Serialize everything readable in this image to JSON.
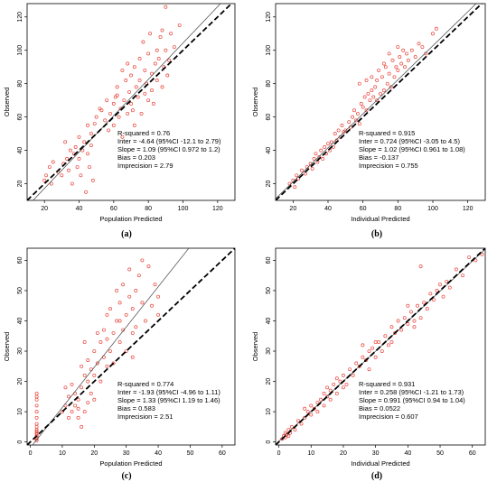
{
  "colors": {
    "points": "#e8453c",
    "identity": "#000000",
    "fit": "#444444"
  },
  "chart_data": [
    {
      "type": "scatter",
      "panel_label": "(a)",
      "xlabel": "Population Predicted",
      "ylabel": "Observed",
      "xlim": [
        10,
        130
      ],
      "ylim": [
        10,
        128
      ],
      "xticks": [
        20,
        40,
        60,
        80,
        100,
        120
      ],
      "yticks": [
        20,
        40,
        60,
        80,
        100,
        120
      ],
      "fit": {
        "intercept": -4.64,
        "slope": 1.09
      },
      "stats": [
        "R-squared = 0.76",
        "Inter = -4.64 (95%CI -12.1 to 2.79)",
        "Slope = 1.09 (95%CI 0.972 to 1.2)",
        "Bias = 0.203",
        "Imprecision  = 2.79"
      ],
      "points": [
        [
          20,
          22
        ],
        [
          21,
          25
        ],
        [
          23,
          30
        ],
        [
          24,
          20
        ],
        [
          25,
          33
        ],
        [
          28,
          27
        ],
        [
          30,
          25
        ],
        [
          31,
          32
        ],
        [
          32,
          45
        ],
        [
          33,
          35
        ],
        [
          34,
          28
        ],
        [
          35,
          40
        ],
        [
          36,
          20
        ],
        [
          37,
          38
        ],
        [
          38,
          42
        ],
        [
          39,
          30
        ],
        [
          40,
          48
        ],
        [
          40,
          35
        ],
        [
          41,
          25
        ],
        [
          42,
          40
        ],
        [
          43,
          45
        ],
        [
          44,
          15
        ],
        [
          45,
          55
        ],
        [
          46,
          30
        ],
        [
          47,
          43
        ],
        [
          48,
          22
        ],
        [
          49,
          56
        ],
        [
          50,
          60
        ],
        [
          52,
          65
        ],
        [
          55,
          58
        ],
        [
          57,
          52
        ],
        [
          58,
          62
        ],
        [
          60,
          68
        ],
        [
          60,
          55
        ],
        [
          61,
          72
        ],
        [
          62,
          78
        ],
        [
          63,
          60
        ],
        [
          64,
          65
        ],
        [
          65,
          88
        ],
        [
          65,
          48
        ],
        [
          66,
          70
        ],
        [
          67,
          82
        ],
        [
          68,
          92
        ],
        [
          68,
          62
        ],
        [
          69,
          75
        ],
        [
          70,
          85
        ],
        [
          70,
          68
        ],
        [
          71,
          64
        ],
        [
          72,
          90
        ],
        [
          72,
          55
        ],
        [
          73,
          78
        ],
        [
          74,
          72
        ],
        [
          75,
          82
        ],
        [
          75,
          95
        ],
        [
          76,
          62
        ],
        [
          77,
          105
        ],
        [
          78,
          88
        ],
        [
          78,
          74
        ],
        [
          79,
          80
        ],
        [
          80,
          70
        ],
        [
          80,
          98
        ],
        [
          81,
          110
        ],
        [
          82,
          86
        ],
        [
          82,
          76
        ],
        [
          83,
          68
        ],
        [
          84,
          92
        ],
        [
          85,
          100
        ],
        [
          85,
          82
        ],
        [
          86,
          95
        ],
        [
          87,
          108
        ],
        [
          88,
          78
        ],
        [
          88,
          112
        ],
        [
          89,
          90
        ],
        [
          90,
          100
        ],
        [
          90,
          126
        ],
        [
          91,
          85
        ],
        [
          92,
          94
        ],
        [
          93,
          110
        ],
        [
          95,
          102
        ],
        [
          98,
          115
        ],
        [
          56,
          70
        ],
        [
          47,
          50
        ],
        [
          45,
          38
        ],
        [
          53,
          64
        ],
        [
          62,
          73
        ]
      ]
    },
    {
      "type": "scatter",
      "panel_label": "(b)",
      "xlabel": "Individual Predicted",
      "ylabel": "Observed",
      "xlim": [
        10,
        130
      ],
      "ylim": [
        10,
        128
      ],
      "xticks": [
        20,
        40,
        60,
        80,
        100,
        120
      ],
      "yticks": [
        20,
        40,
        60,
        80,
        100,
        120
      ],
      "fit": {
        "intercept": 0.724,
        "slope": 1.02
      },
      "stats": [
        "R-squared = 0.915",
        "Inter = 0.724 (95%CI -3.05 to 4.5)",
        "Slope = 1.02 (95%CI 0.961 to 1.08)",
        "Bias = -0.137",
        "Imprecision  = 0.755"
      ],
      "points": [
        [
          18,
          20
        ],
        [
          20,
          22
        ],
        [
          21,
          18
        ],
        [
          22,
          25
        ],
        [
          23,
          23
        ],
        [
          25,
          28
        ],
        [
          27,
          26
        ],
        [
          28,
          30
        ],
        [
          30,
          32
        ],
        [
          31,
          29
        ],
        [
          32,
          35
        ],
        [
          33,
          38
        ],
        [
          34,
          33
        ],
        [
          35,
          36
        ],
        [
          36,
          40
        ],
        [
          37,
          35
        ],
        [
          38,
          42
        ],
        [
          39,
          38
        ],
        [
          40,
          44
        ],
        [
          41,
          40
        ],
        [
          42,
          45
        ],
        [
          43,
          42
        ],
        [
          44,
          50
        ],
        [
          45,
          46
        ],
        [
          46,
          52
        ],
        [
          47,
          48
        ],
        [
          48,
          55
        ],
        [
          49,
          51
        ],
        [
          50,
          52
        ],
        [
          52,
          57
        ],
        [
          53,
          54
        ],
        [
          54,
          60
        ],
        [
          55,
          64
        ],
        [
          56,
          58
        ],
        [
          57,
          62
        ],
        [
          58,
          80
        ],
        [
          59,
          68
        ],
        [
          60,
          66
        ],
        [
          61,
          72
        ],
        [
          62,
          64
        ],
        [
          63,
          74
        ],
        [
          64,
          70
        ],
        [
          65,
          76
        ],
        [
          66,
          72
        ],
        [
          67,
          78
        ],
        [
          68,
          82
        ],
        [
          68,
          70
        ],
        [
          69,
          88
        ],
        [
          70,
          74
        ],
        [
          71,
          84
        ],
        [
          72,
          76
        ],
        [
          73,
          90
        ],
        [
          74,
          80
        ],
        [
          75,
          86
        ],
        [
          76,
          78
        ],
        [
          77,
          94
        ],
        [
          78,
          84
        ],
        [
          79,
          90
        ],
        [
          80,
          88
        ],
        [
          81,
          96
        ],
        [
          82,
          92
        ],
        [
          83,
          100
        ],
        [
          84,
          90
        ],
        [
          85,
          98
        ],
        [
          86,
          94
        ],
        [
          88,
          100
        ],
        [
          90,
          96
        ],
        [
          92,
          104
        ],
        [
          94,
          102
        ],
        [
          96,
          98
        ],
        [
          100,
          110
        ],
        [
          102,
          113
        ],
        [
          72,
          92
        ],
        [
          65,
          84
        ],
        [
          75,
          98
        ],
        [
          80,
          102
        ],
        [
          58,
          56
        ],
        [
          62,
          82
        ]
      ]
    },
    {
      "type": "scatter",
      "panel_label": "(c)",
      "xlabel": "Population Predicted",
      "ylabel": "Observed",
      "xlim": [
        -1,
        64
      ],
      "ylim": [
        -1,
        64
      ],
      "xticks": [
        0,
        10,
        20,
        30,
        40,
        50,
        60
      ],
      "yticks": [
        0,
        10,
        20,
        30,
        40,
        50,
        60
      ],
      "fit": {
        "intercept": -1.93,
        "slope": 1.33
      },
      "stats": [
        "R-squared = 0.774",
        "Inter = -1.93 (95%CI -4.96 to 1.11)",
        "Slope = 1.33 (95%CI 1.19 to 1.46)",
        "Bias = 0.583",
        "Imprecision  = 2.51"
      ],
      "points": [
        [
          2,
          1
        ],
        [
          2,
          2
        ],
        [
          2,
          3
        ],
        [
          2,
          4
        ],
        [
          2,
          5
        ],
        [
          2,
          1.5
        ],
        [
          2,
          2.5
        ],
        [
          2,
          3.5
        ],
        [
          2,
          6
        ],
        [
          2,
          8
        ],
        [
          2,
          10
        ],
        [
          2,
          12
        ],
        [
          2,
          14
        ],
        [
          2,
          15
        ],
        [
          2,
          16
        ],
        [
          2,
          0.5
        ],
        [
          10,
          10
        ],
        [
          11,
          12
        ],
        [
          11,
          18
        ],
        [
          12,
          8
        ],
        [
          12,
          15
        ],
        [
          13,
          10
        ],
        [
          13,
          19
        ],
        [
          14,
          12
        ],
        [
          14,
          16
        ],
        [
          15,
          14
        ],
        [
          15,
          8
        ],
        [
          15,
          11
        ],
        [
          16,
          18
        ],
        [
          16,
          5
        ],
        [
          16,
          25
        ],
        [
          17,
          10
        ],
        [
          17,
          22
        ],
        [
          17,
          33
        ],
        [
          18,
          20
        ],
        [
          18,
          13
        ],
        [
          18,
          27
        ],
        [
          19,
          24
        ],
        [
          20,
          22
        ],
        [
          20,
          30
        ],
        [
          21,
          26
        ],
        [
          21,
          36
        ],
        [
          22,
          20
        ],
        [
          22,
          33
        ],
        [
          23,
          28
        ],
        [
          23,
          37
        ],
        [
          24,
          25
        ],
        [
          24,
          42
        ],
        [
          25,
          30
        ],
        [
          25,
          44
        ],
        [
          26,
          36
        ],
        [
          26,
          26
        ],
        [
          27,
          50
        ],
        [
          27,
          40
        ],
        [
          28,
          33
        ],
        [
          28,
          46
        ],
        [
          29,
          37
        ],
        [
          29,
          52
        ],
        [
          30,
          42
        ],
        [
          30,
          30
        ],
        [
          31,
          48
        ],
        [
          31,
          57
        ],
        [
          32,
          44
        ],
        [
          32,
          36
        ],
        [
          33,
          50
        ],
        [
          33,
          38
        ],
        [
          34,
          55
        ],
        [
          35,
          60
        ],
        [
          35,
          46
        ],
        [
          36,
          40
        ],
        [
          37,
          58
        ],
        [
          38,
          45
        ],
        [
          39,
          52
        ],
        [
          40,
          48
        ],
        [
          40,
          42
        ],
        [
          20,
          14
        ],
        [
          19,
          16
        ],
        [
          24,
          34
        ],
        [
          28,
          40
        ],
        [
          32,
          28
        ]
      ]
    },
    {
      "type": "scatter",
      "panel_label": "(d)",
      "xlabel": "Individual Predicted",
      "ylabel": "Observed",
      "xlim": [
        -1,
        64
      ],
      "ylim": [
        -1,
        64
      ],
      "xticks": [
        0,
        10,
        20,
        30,
        40,
        50,
        60
      ],
      "yticks": [
        0,
        10,
        20,
        30,
        40,
        50,
        60
      ],
      "fit": {
        "intercept": 0.258,
        "slope": 0.991
      },
      "stats": [
        "R-squared = 0.931",
        "Inter = 0.258 (95%CI -1.21 to 1.73)",
        "Slope = 0.991 (95%CI 0.94 to 1.04)",
        "Bias = 0.0522",
        "Imprecision  = 0.607"
      ],
      "points": [
        [
          1,
          1
        ],
        [
          1.5,
          2
        ],
        [
          2,
          1.5
        ],
        [
          2,
          3
        ],
        [
          2.5,
          2.5
        ],
        [
          3,
          2
        ],
        [
          3,
          4
        ],
        [
          3.5,
          3
        ],
        [
          4,
          5
        ],
        [
          5,
          4
        ],
        [
          6,
          7
        ],
        [
          7,
          6
        ],
        [
          8,
          8
        ],
        [
          9,
          10
        ],
        [
          10,
          9
        ],
        [
          10,
          12
        ],
        [
          11,
          11
        ],
        [
          12,
          13
        ],
        [
          12,
          10
        ],
        [
          13,
          14
        ],
        [
          14,
          12
        ],
        [
          14,
          16
        ],
        [
          15,
          15
        ],
        [
          16,
          17
        ],
        [
          16,
          14
        ],
        [
          17,
          19
        ],
        [
          18,
          16
        ],
        [
          18,
          21
        ],
        [
          19,
          20
        ],
        [
          20,
          22
        ],
        [
          21,
          19
        ],
        [
          22,
          24
        ],
        [
          23,
          22
        ],
        [
          24,
          26
        ],
        [
          25,
          25
        ],
        [
          26,
          28
        ],
        [
          27,
          27
        ],
        [
          28,
          24
        ],
        [
          28,
          30
        ],
        [
          29,
          31
        ],
        [
          30,
          28
        ],
        [
          31,
          33
        ],
        [
          32,
          30
        ],
        [
          33,
          35
        ],
        [
          34,
          32
        ],
        [
          35,
          38
        ],
        [
          36,
          36
        ],
        [
          37,
          40
        ],
        [
          38,
          37
        ],
        [
          39,
          41
        ],
        [
          40,
          39
        ],
        [
          41,
          43
        ],
        [
          42,
          40
        ],
        [
          43,
          45
        ],
        [
          44,
          41
        ],
        [
          44,
          58
        ],
        [
          45,
          46
        ],
        [
          46,
          44
        ],
        [
          47,
          49
        ],
        [
          48,
          47
        ],
        [
          49,
          50
        ],
        [
          50,
          52
        ],
        [
          51,
          48
        ],
        [
          52,
          53
        ],
        [
          53,
          51
        ],
        [
          55,
          57
        ],
        [
          57,
          55
        ],
        [
          59,
          61
        ],
        [
          61,
          60
        ],
        [
          63,
          62
        ],
        [
          8,
          11
        ],
        [
          15,
          18
        ],
        [
          20,
          18
        ],
        [
          26,
          32
        ],
        [
          35,
          33
        ],
        [
          40,
          45
        ],
        [
          42,
          38
        ],
        [
          30,
          33
        ]
      ]
    }
  ]
}
